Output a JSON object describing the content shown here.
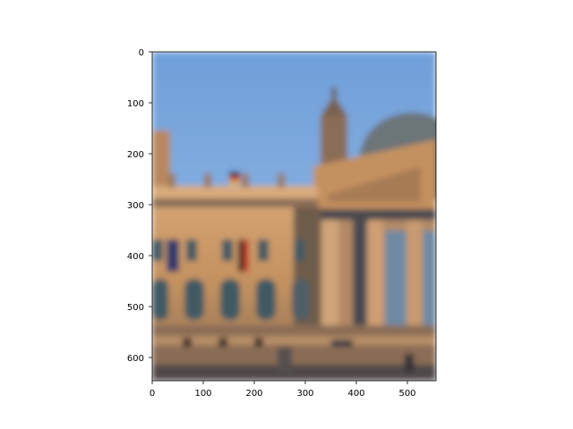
{
  "figure": {
    "background": "#ffffff",
    "image_description_icon": "photo-icon"
  },
  "image_plot": {
    "content": "blurred-photo-of-building-with-flags-and-dome",
    "x_ticks": [
      "0",
      "100",
      "200",
      "300",
      "400",
      "500"
    ],
    "y_ticks": [
      "0",
      "100",
      "200",
      "300",
      "400",
      "500",
      "600"
    ],
    "colors": {
      "sky_top": "#6f9fd9",
      "sky_bottom": "#9cbde6",
      "stone_light": "#d8a777",
      "stone_mid": "#b9875e",
      "stone_dark": "#6e5b4c",
      "shadow": "#4a4a4f",
      "dome": "#6c7478",
      "window": "#3f5a64",
      "flag_black": "#222222",
      "flag_red": "#c43b28",
      "flag_gold": "#e2b03c"
    }
  }
}
